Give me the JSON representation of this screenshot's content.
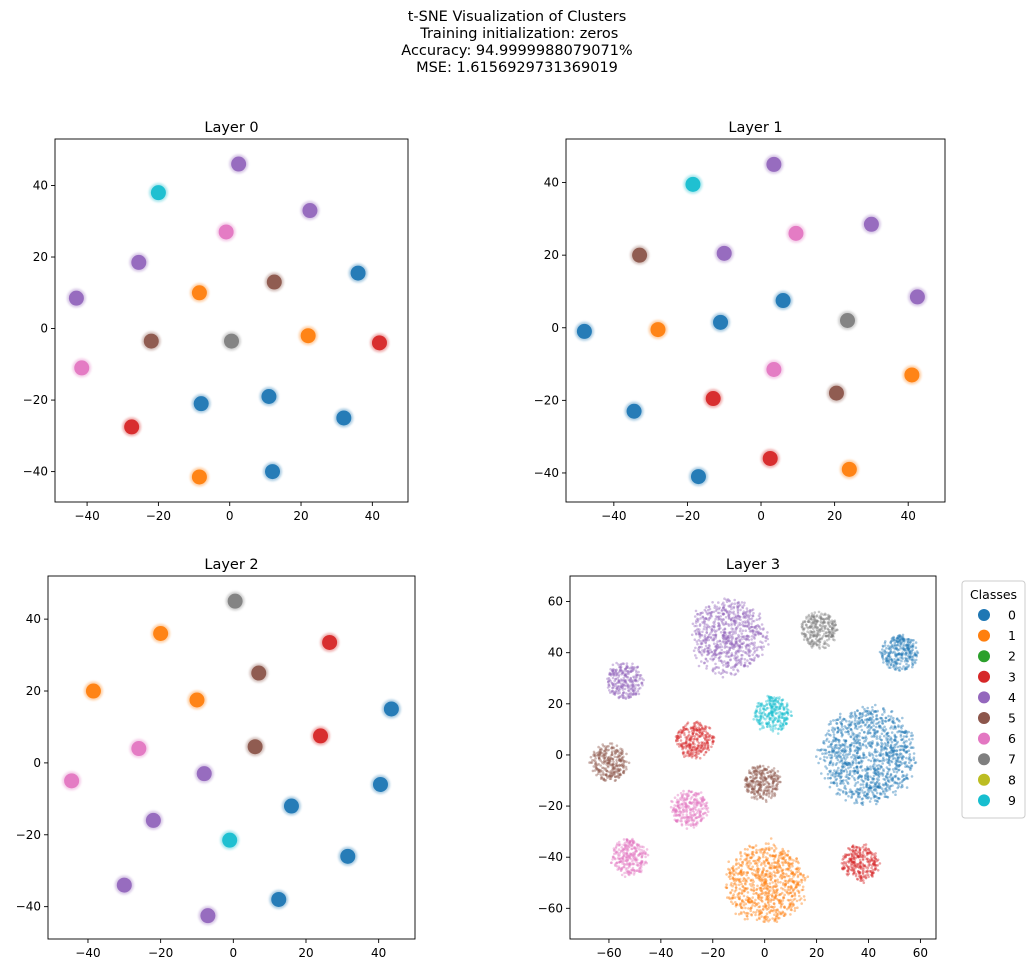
{
  "figure": {
    "title_lines": [
      "t-SNE Visualization of Clusters",
      " Training initialization: zeros",
      "Accuracy: 94.9999988079071%",
      "MSE: 1.6156929731369019"
    ]
  },
  "palette": {
    "0": "#1f77b4",
    "1": "#ff7f0e",
    "2": "#2ca02c",
    "3": "#d62728",
    "4": "#9467bd",
    "5": "#8c564b",
    "6": "#e377c2",
    "7": "#7f7f7f",
    "8": "#bcbd22",
    "9": "#17becf"
  },
  "legend": {
    "title": "Classes",
    "placement": "outside-right of Layer 3",
    "items": [
      "0",
      "1",
      "2",
      "3",
      "4",
      "5",
      "6",
      "7",
      "8",
      "9"
    ]
  },
  "chart_data": [
    {
      "type": "scatter",
      "title": "Layer 0",
      "xlim": [
        -49,
        50
      ],
      "ylim": [
        -48.5,
        53
      ],
      "xticks": [
        -40,
        -20,
        0,
        20,
        40
      ],
      "yticks": [
        -40,
        -20,
        0,
        20,
        40
      ],
      "grid": false,
      "points": [
        {
          "x": -20,
          "y": 38,
          "cls": 9
        },
        {
          "x": 2.5,
          "y": 46,
          "cls": 4
        },
        {
          "x": 22.5,
          "y": 33,
          "cls": 4
        },
        {
          "x": -1,
          "y": 27,
          "cls": 6
        },
        {
          "x": -25.5,
          "y": 18.5,
          "cls": 4
        },
        {
          "x": -8.5,
          "y": 10,
          "cls": 1
        },
        {
          "x": 12.5,
          "y": 13,
          "cls": 5
        },
        {
          "x": 36,
          "y": 15.5,
          "cls": 0
        },
        {
          "x": -43,
          "y": 8.5,
          "cls": 4
        },
        {
          "x": -22,
          "y": -3.5,
          "cls": 5
        },
        {
          "x": 0.5,
          "y": -3.5,
          "cls": 7
        },
        {
          "x": 22,
          "y": -2,
          "cls": 1
        },
        {
          "x": 42,
          "y": -4,
          "cls": 3
        },
        {
          "x": -41.5,
          "y": -11,
          "cls": 6
        },
        {
          "x": -8,
          "y": -21,
          "cls": 0
        },
        {
          "x": 11,
          "y": -19,
          "cls": 0
        },
        {
          "x": 32,
          "y": -25,
          "cls": 0
        },
        {
          "x": -27.5,
          "y": -27.5,
          "cls": 3
        },
        {
          "x": -8.5,
          "y": -41.5,
          "cls": 1
        },
        {
          "x": 12,
          "y": -40,
          "cls": 0
        }
      ]
    },
    {
      "type": "scatter",
      "title": "Layer 1",
      "xlim": [
        -53,
        50
      ],
      "ylim": [
        -48,
        52
      ],
      "xticks": [
        -40,
        -20,
        0,
        20,
        40
      ],
      "yticks": [
        -40,
        -20,
        0,
        20,
        40
      ],
      "grid": false,
      "points": [
        {
          "x": -18.5,
          "y": 39.5,
          "cls": 9
        },
        {
          "x": 3.5,
          "y": 45,
          "cls": 4
        },
        {
          "x": 30,
          "y": 28.5,
          "cls": 4
        },
        {
          "x": 9.5,
          "y": 26,
          "cls": 6
        },
        {
          "x": -33,
          "y": 20,
          "cls": 5
        },
        {
          "x": -10,
          "y": 20.5,
          "cls": 4
        },
        {
          "x": 42.5,
          "y": 8.5,
          "cls": 4
        },
        {
          "x": 6,
          "y": 7.5,
          "cls": 0
        },
        {
          "x": -48,
          "y": -1,
          "cls": 0
        },
        {
          "x": -28,
          "y": -0.5,
          "cls": 1
        },
        {
          "x": -11,
          "y": 1.5,
          "cls": 0
        },
        {
          "x": 23.5,
          "y": 2,
          "cls": 7
        },
        {
          "x": 3.5,
          "y": -11.5,
          "cls": 6
        },
        {
          "x": 41,
          "y": -13,
          "cls": 1
        },
        {
          "x": -34.5,
          "y": -23,
          "cls": 0
        },
        {
          "x": -13,
          "y": -19.5,
          "cls": 3
        },
        {
          "x": 20.5,
          "y": -18,
          "cls": 5
        },
        {
          "x": 2.5,
          "y": -36,
          "cls": 3
        },
        {
          "x": -17,
          "y": -41,
          "cls": 0
        },
        {
          "x": 24,
          "y": -39,
          "cls": 1
        }
      ]
    },
    {
      "type": "scatter",
      "title": "Layer 2",
      "xlim": [
        -51,
        50
      ],
      "ylim": [
        -49,
        52
      ],
      "xticks": [
        -40,
        -20,
        0,
        20,
        40
      ],
      "yticks": [
        -40,
        -20,
        0,
        20,
        40
      ],
      "grid": false,
      "points": [
        {
          "x": 0.5,
          "y": 45,
          "cls": 7
        },
        {
          "x": -20,
          "y": 36,
          "cls": 1
        },
        {
          "x": 26.5,
          "y": 33.5,
          "cls": 3
        },
        {
          "x": -38.5,
          "y": 20,
          "cls": 1
        },
        {
          "x": -10,
          "y": 17.5,
          "cls": 1
        },
        {
          "x": 7,
          "y": 25,
          "cls": 5
        },
        {
          "x": 43.5,
          "y": 15,
          "cls": 0
        },
        {
          "x": -26,
          "y": 4,
          "cls": 6
        },
        {
          "x": 6,
          "y": 4.5,
          "cls": 5
        },
        {
          "x": 24,
          "y": 7.5,
          "cls": 3
        },
        {
          "x": -44.5,
          "y": -5,
          "cls": 6
        },
        {
          "x": -8,
          "y": -3,
          "cls": 4
        },
        {
          "x": 40.5,
          "y": -6,
          "cls": 0
        },
        {
          "x": 16,
          "y": -12,
          "cls": 0
        },
        {
          "x": -22,
          "y": -16,
          "cls": 4
        },
        {
          "x": -1,
          "y": -21.5,
          "cls": 9
        },
        {
          "x": 31.5,
          "y": -26,
          "cls": 0
        },
        {
          "x": -30,
          "y": -34,
          "cls": 4
        },
        {
          "x": 12.5,
          "y": -38,
          "cls": 0
        },
        {
          "x": -7,
          "y": -42.5,
          "cls": 4
        }
      ]
    },
    {
      "type": "scatter",
      "title": "Layer 3",
      "xlim": [
        -75,
        66
      ],
      "ylim": [
        -72,
        70
      ],
      "xticks": [
        -60,
        -40,
        -20,
        0,
        20,
        40,
        60
      ],
      "yticks": [
        -60,
        -40,
        -20,
        0,
        20,
        40,
        60
      ],
      "grid": false,
      "clusters": [
        {
          "x": -14,
          "y": 46,
          "cls": 4,
          "spread": 14
        },
        {
          "x": 21,
          "y": 49,
          "cls": 7,
          "spread": 7
        },
        {
          "x": 52,
          "y": 40,
          "cls": 0,
          "spread": 7
        },
        {
          "x": -54,
          "y": 29,
          "cls": 4,
          "spread": 7
        },
        {
          "x": 3,
          "y": 16,
          "cls": 9,
          "spread": 7
        },
        {
          "x": -27,
          "y": 6,
          "cls": 3,
          "spread": 7
        },
        {
          "x": 40,
          "y": 0,
          "cls": 0,
          "spread": 18
        },
        {
          "x": -60,
          "y": -3,
          "cls": 5,
          "spread": 7
        },
        {
          "x": -1,
          "y": -11,
          "cls": 5,
          "spread": 7
        },
        {
          "x": -29,
          "y": -21,
          "cls": 6,
          "spread": 7
        },
        {
          "x": 37,
          "y": -42,
          "cls": 3,
          "spread": 7
        },
        {
          "x": -52,
          "y": -40,
          "cls": 6,
          "spread": 7
        },
        {
          "x": 0,
          "y": -50,
          "cls": 1,
          "spread": 15
        }
      ]
    }
  ]
}
